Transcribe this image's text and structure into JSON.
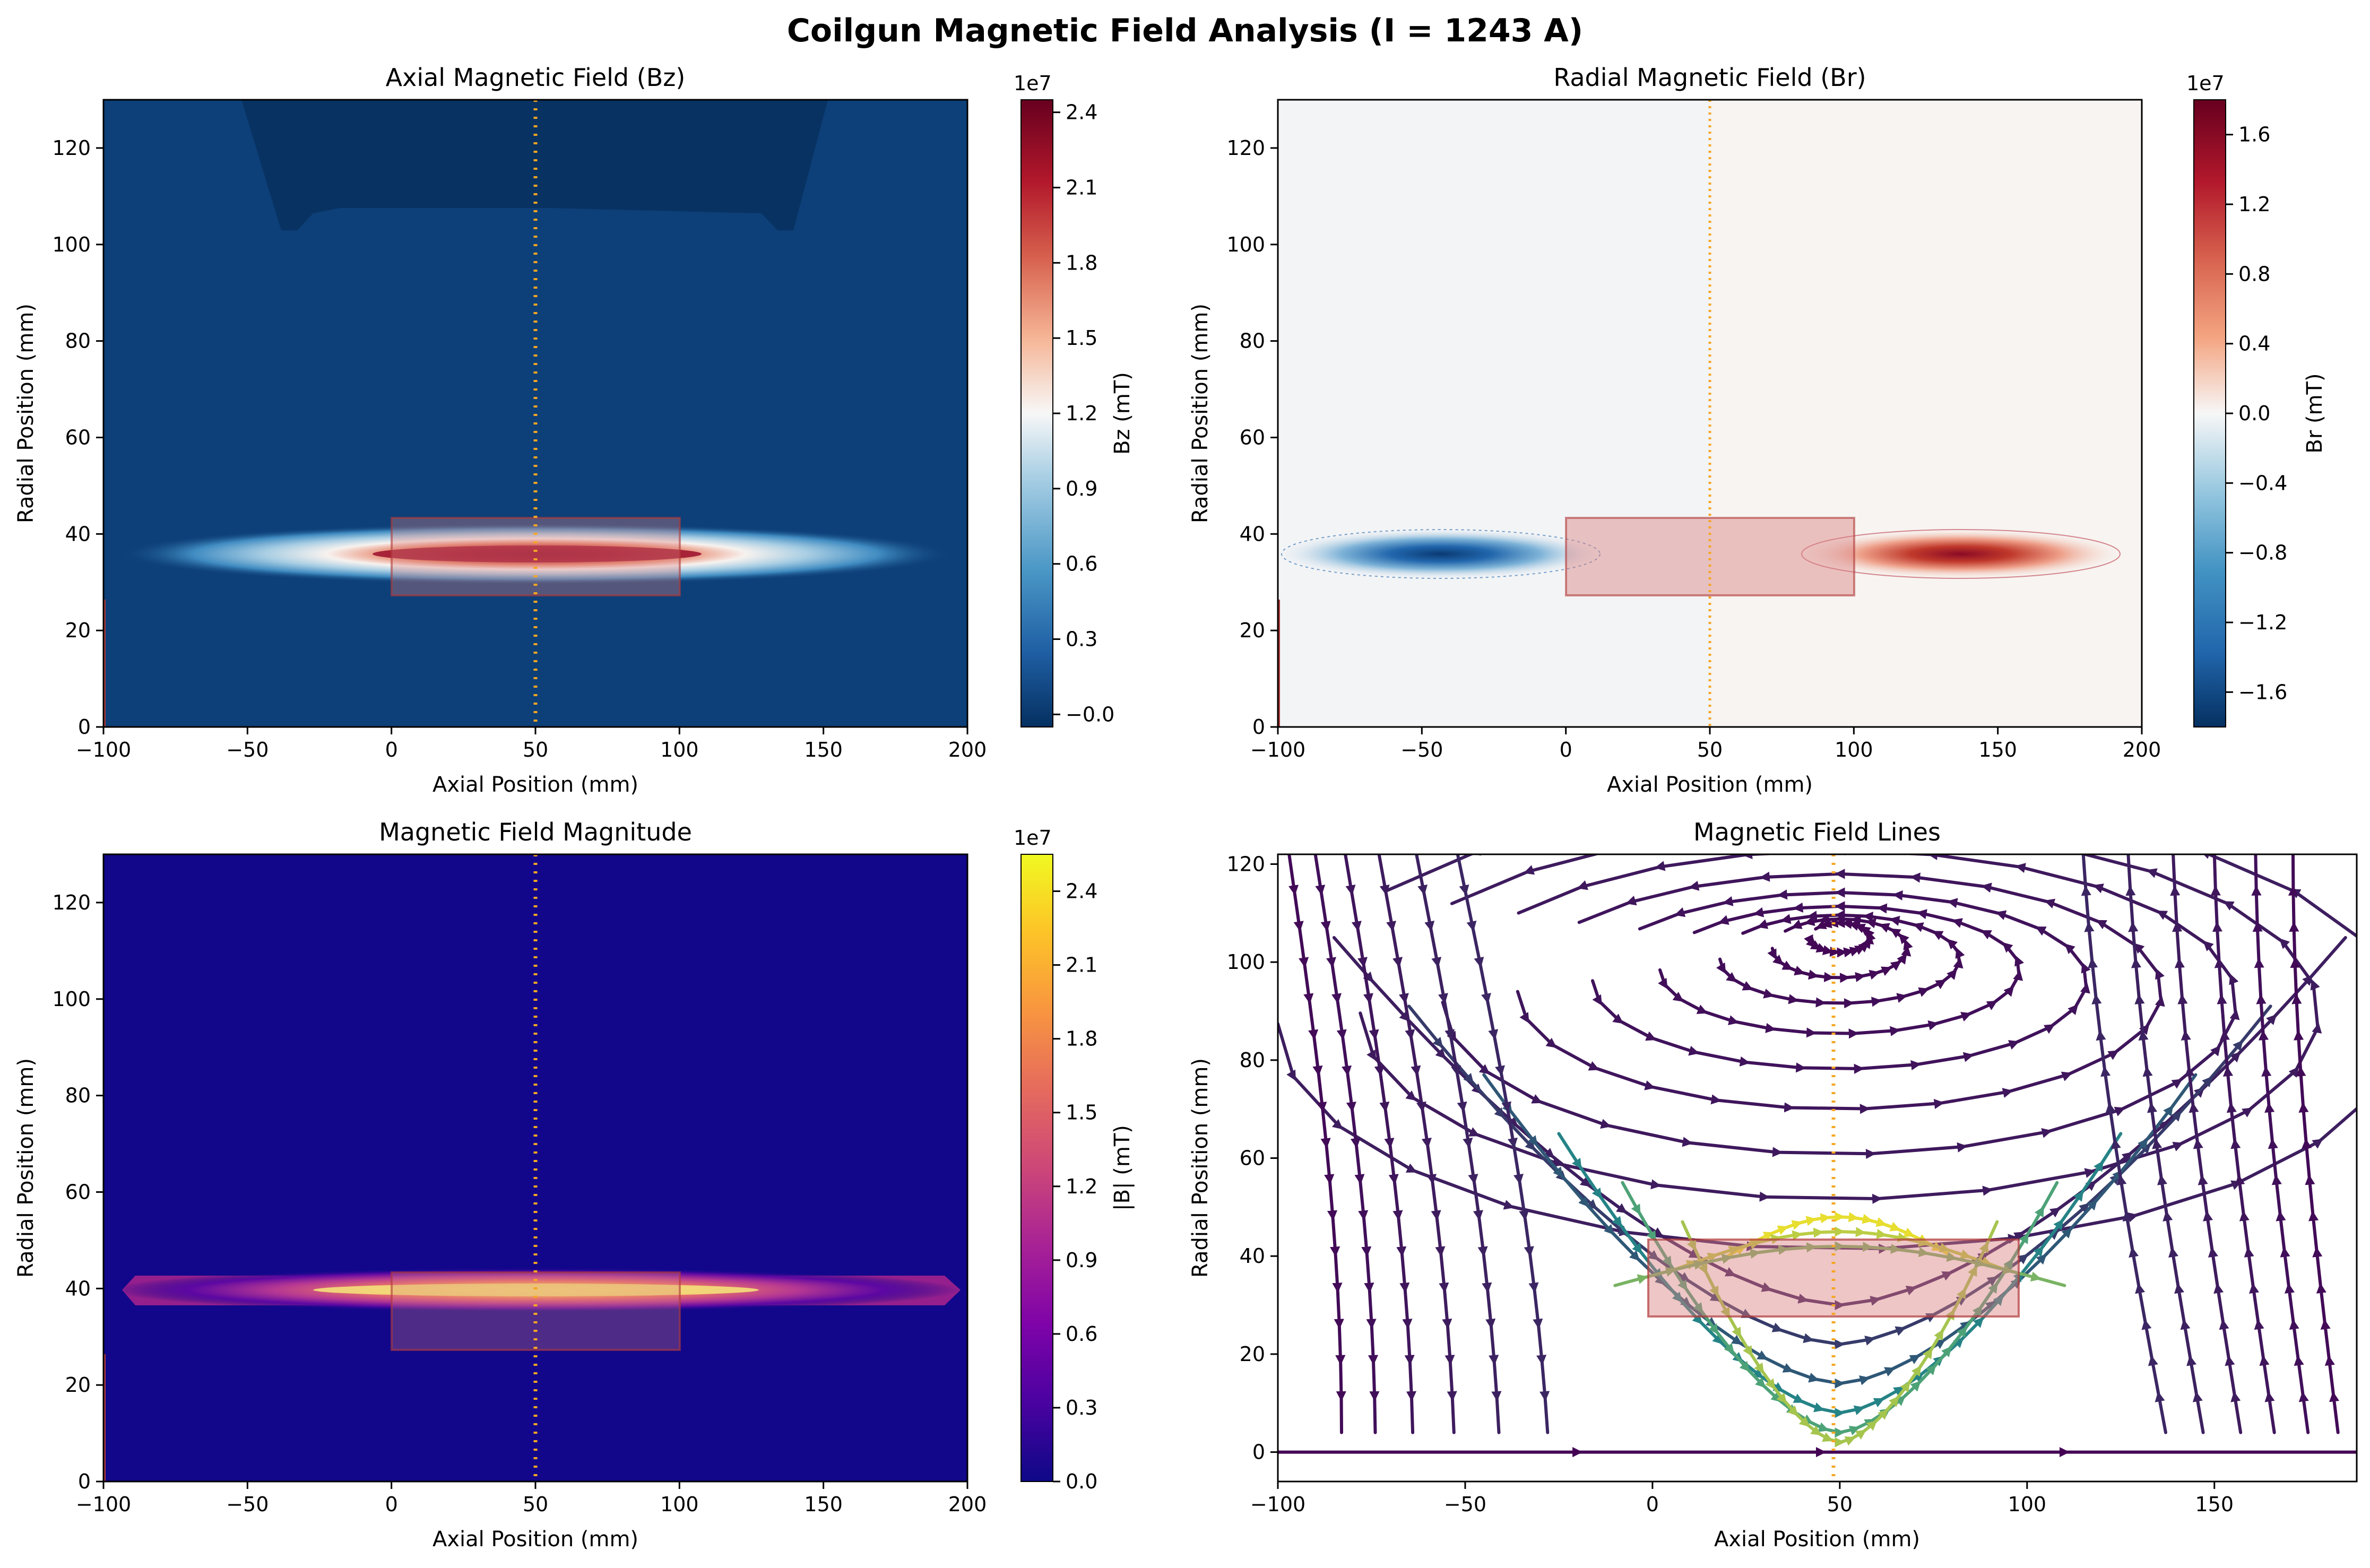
{
  "figure": {
    "title": "Coilgun Magnetic Field Analysis (I = 1243 A)"
  },
  "colors": {
    "coil_fill": "#d98080",
    "coil_edge": "#b03a3a",
    "marker_line": "#f5a623",
    "bz_background": "#0d3f78",
    "bz_dark_band": "#083262",
    "bmag_background": "#12078a",
    "stream_low": "#440154",
    "stream_high": "#fde725"
  },
  "chart_data": [
    {
      "id": "bz",
      "type": "heatmap",
      "title": "Axial Magnetic Field (Bz)",
      "xlabel": "Axial Position (mm)",
      "ylabel": "Radial Position (mm)",
      "xlim": [
        -100,
        200
      ],
      "ylim": [
        0,
        130
      ],
      "xticks": [
        -100,
        -50,
        0,
        50,
        100,
        150,
        200
      ],
      "yticks": [
        0,
        20,
        40,
        60,
        80,
        100,
        120
      ],
      "colormap": "RdBu_r",
      "colorbar": {
        "label": "Bz (mT)",
        "scale_label": "1e7",
        "range": [
          -0.05,
          2.45
        ],
        "ticks": [
          -0.0,
          0.3,
          0.6,
          0.9,
          1.2,
          1.5,
          1.8,
          2.1,
          2.4
        ],
        "tick_labels": [
          "−0.0",
          "0.3",
          "0.6",
          "0.9",
          "1.2",
          "1.5",
          "1.8",
          "2.1",
          "2.4"
        ]
      },
      "coil": {
        "z": [
          0,
          100
        ],
        "r": [
          27,
          43
        ]
      },
      "projectile_z": 50,
      "field_peak": {
        "z": 50,
        "r": 36,
        "value": 2.4
      }
    },
    {
      "id": "br",
      "type": "heatmap",
      "title": "Radial Magnetic Field (Br)",
      "xlabel": "Axial Position (mm)",
      "ylabel": "Radial Position (mm)",
      "xlim": [
        -100,
        200
      ],
      "ylim": [
        0,
        130
      ],
      "xticks": [
        -100,
        -50,
        0,
        50,
        100,
        150,
        200
      ],
      "yticks": [
        0,
        20,
        40,
        60,
        80,
        100,
        120
      ],
      "colormap": "RdBu_r",
      "colorbar": {
        "label": "Br (mT)",
        "scale_label": "1e7",
        "range": [
          -1.8,
          1.8
        ],
        "ticks": [
          -1.6,
          -1.2,
          -0.8,
          -0.4,
          0.0,
          0.4,
          0.8,
          1.2,
          1.6
        ],
        "tick_labels": [
          "−1.6",
          "−1.2",
          "−0.8",
          "−0.4",
          "0.0",
          "0.4",
          "0.8",
          "1.2",
          "1.6"
        ]
      },
      "coil": {
        "z": [
          0,
          100
        ],
        "r": [
          27,
          43
        ]
      },
      "projectile_z": 50,
      "lobes": [
        {
          "z": -45,
          "r": 36,
          "value": -1.7
        },
        {
          "z": 145,
          "r": 36,
          "value": 1.7
        }
      ]
    },
    {
      "id": "bmag",
      "type": "heatmap",
      "title": "Magnetic Field Magnitude",
      "xlabel": "Axial Position (mm)",
      "ylabel": "Radial Position (mm)",
      "xlim": [
        -100,
        200
      ],
      "ylim": [
        0,
        130
      ],
      "xticks": [
        -100,
        -50,
        0,
        50,
        100,
        150,
        200
      ],
      "yticks": [
        0,
        20,
        40,
        60,
        80,
        100,
        120
      ],
      "colormap": "plasma",
      "colorbar": {
        "label": "|B| (mT)",
        "scale_label": "1e7",
        "range": [
          0.0,
          2.55
        ],
        "ticks": [
          0.0,
          0.3,
          0.6,
          0.9,
          1.2,
          1.5,
          1.8,
          2.1,
          2.4
        ],
        "tick_labels": [
          "0.0",
          "0.3",
          "0.6",
          "0.9",
          "1.2",
          "1.5",
          "1.8",
          "2.1",
          "2.4"
        ]
      },
      "coil": {
        "z": [
          0,
          100
        ],
        "r": [
          27,
          43
        ]
      },
      "projectile_z": 50,
      "field_peak": {
        "z": 50,
        "r": 36,
        "value": 2.5
      }
    },
    {
      "id": "lines",
      "type": "streamplot",
      "title": "Magnetic Field Lines",
      "xlabel": "Axial Position (mm)",
      "ylabel": "Radial Position (mm)",
      "xlim": [
        -100,
        188
      ],
      "ylim": [
        -6,
        122
      ],
      "xticks": [
        -100,
        -50,
        0,
        50,
        100,
        150
      ],
      "yticks": [
        0,
        20,
        40,
        60,
        80,
        100,
        120
      ],
      "colormap": "viridis",
      "coil": {
        "z": [
          0,
          100
        ],
        "r": [
          27,
          43
        ]
      },
      "projectile_z": 50,
      "vortex_center": {
        "z": 50,
        "r": 105
      }
    }
  ]
}
